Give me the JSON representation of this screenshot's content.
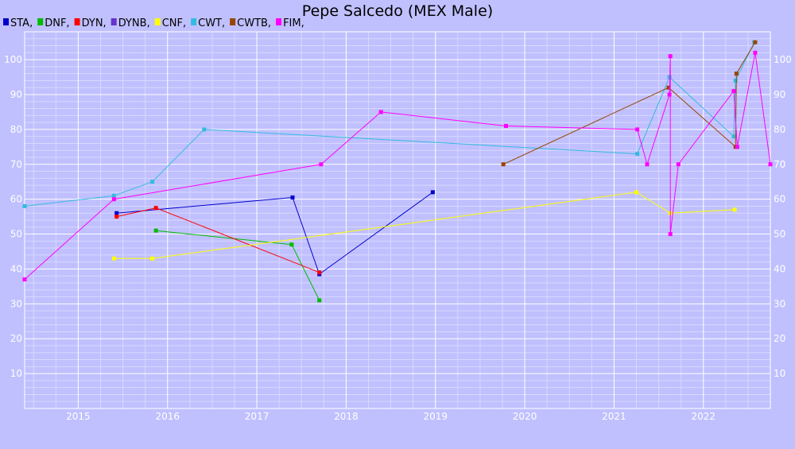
{
  "chart_data": {
    "type": "line",
    "title": "Pepe Salcedo (MEX Male)",
    "xlabel": "",
    "ylabel": "",
    "x_axis": "time",
    "xlim": [
      2014.4,
      2022.75
    ],
    "ylim": [
      0,
      108
    ],
    "x_ticks": [
      "2015",
      "2016",
      "2017",
      "2018",
      "2019",
      "2020",
      "2021",
      "2022"
    ],
    "y_ticks": [
      10,
      20,
      30,
      40,
      50,
      60,
      70,
      80,
      90,
      100
    ],
    "y_axis_both_sides": true,
    "grid": true,
    "legend_position": "top-left",
    "colors": {
      "background": "#c0c0ff",
      "grid": "#ffffff",
      "axis": "#ffffff"
    },
    "series": [
      {
        "name": "STA",
        "color": "#0000cc",
        "points": [
          [
            2015.43,
            56
          ],
          [
            2017.4,
            60.5
          ],
          [
            2017.7,
            38.5
          ],
          [
            2018.97,
            62
          ]
        ]
      },
      {
        "name": "DNF",
        "color": "#00bb00",
        "points": [
          [
            2015.87,
            51
          ],
          [
            2017.39,
            47
          ],
          [
            2017.7,
            31
          ]
        ]
      },
      {
        "name": "DYN",
        "color": "#ff0000",
        "points": [
          [
            2015.43,
            55
          ],
          [
            2015.87,
            57.5
          ],
          [
            2017.7,
            39
          ]
        ]
      },
      {
        "name": "DYNB",
        "color": "#6633cc",
        "points": []
      },
      {
        "name": "CNF",
        "color": "#ffff00",
        "points": [
          [
            2015.4,
            43
          ],
          [
            2015.83,
            43
          ],
          [
            2021.25,
            62
          ],
          [
            2021.63,
            56
          ],
          [
            2022.35,
            57
          ]
        ]
      },
      {
        "name": "CWT",
        "color": "#33bbdd",
        "points": [
          [
            2014.4,
            58
          ],
          [
            2015.4,
            61
          ],
          [
            2015.83,
            65
          ],
          [
            2016.41,
            80
          ],
          [
            2021.26,
            73
          ],
          [
            2021.62,
            95
          ],
          [
            2022.34,
            78
          ],
          [
            2022.36,
            94
          ],
          [
            2022.57,
            105
          ]
        ]
      },
      {
        "name": "CWTB",
        "color": "#994400",
        "points": [
          [
            2019.76,
            70
          ],
          [
            2021.61,
            92
          ],
          [
            2022.36,
            75
          ],
          [
            2022.37,
            96
          ],
          [
            2022.58,
            105
          ]
        ]
      },
      {
        "name": "FIM",
        "color": "#ff00ff",
        "points": [
          [
            2014.4,
            37
          ],
          [
            2015.4,
            60
          ],
          [
            2017.72,
            70
          ],
          [
            2018.39,
            85
          ],
          [
            2019.79,
            81
          ],
          [
            2021.26,
            80
          ],
          [
            2021.37,
            70
          ],
          [
            2021.62,
            90
          ],
          [
            2021.63,
            101
          ],
          [
            2021.63,
            50
          ],
          [
            2021.72,
            70
          ],
          [
            2022.34,
            91
          ],
          [
            2022.38,
            75
          ],
          [
            2022.58,
            102
          ],
          [
            2022.75,
            70
          ]
        ]
      }
    ]
  }
}
